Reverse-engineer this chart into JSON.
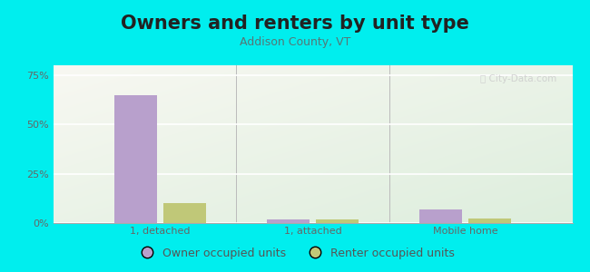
{
  "title": "Owners and renters by unit type",
  "subtitle": "Addison County, VT",
  "categories": [
    "1, detached",
    "1, attached",
    "Mobile home"
  ],
  "owner_values": [
    65.0,
    2.0,
    7.0
  ],
  "renter_values": [
    10.0,
    2.0,
    2.5
  ],
  "owner_color": "#b8a0cc",
  "renter_color": "#c0c878",
  "background_color": "#00eeee",
  "plot_bg_top_right": "#f8f8f2",
  "plot_bg_bottom_left": "#ddeedd",
  "ylim": [
    0,
    80
  ],
  "yticks": [
    0,
    25,
    50,
    75
  ],
  "yticklabels": [
    "0%",
    "25%",
    "50%",
    "75%"
  ],
  "bar_width": 0.28,
  "legend_owner": "Owner occupied units",
  "legend_renter": "Renter occupied units",
  "title_fontsize": 15,
  "subtitle_fontsize": 9,
  "axis_fontsize": 8,
  "legend_fontsize": 9,
  "title_color": "#222222",
  "subtitle_color": "#557777",
  "tick_color": "#666666"
}
